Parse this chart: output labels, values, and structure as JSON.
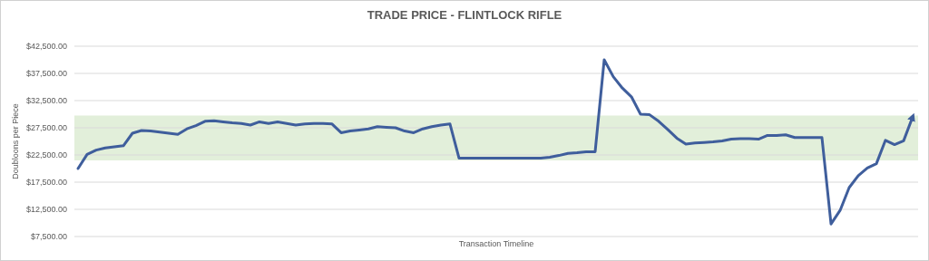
{
  "chart_data": {
    "type": "line",
    "title": "TRADE PRICE - FLINTLOCK RIFLE",
    "xlabel": "Transaction Timeline",
    "ylabel": "Doubloons per Piece",
    "categories": [
      null,
      null,
      null,
      null,
      null,
      null,
      null,
      null,
      null,
      null,
      null,
      null,
      null,
      null,
      null,
      null,
      null,
      null,
      null,
      null,
      null,
      null,
      null,
      null,
      null,
      null,
      null,
      null,
      null,
      null,
      null,
      null,
      null,
      null,
      null,
      null,
      null,
      null,
      null,
      null,
      null,
      null,
      null,
      null,
      null,
      null,
      null,
      null,
      null,
      null,
      null,
      null,
      null,
      null,
      null,
      null,
      null,
      null,
      null,
      null,
      null,
      null,
      null,
      null,
      null,
      null,
      null,
      null,
      null,
      null,
      null,
      null,
      null,
      null,
      null,
      null,
      null,
      null,
      null,
      null,
      null,
      null,
      null,
      null,
      null,
      null,
      null,
      null,
      null,
      null,
      null,
      null,
      null
    ],
    "series": [
      {
        "color": "#3f5e9c",
        "values": [
          20000,
          22600,
          23400,
          23800,
          24000,
          24200,
          26500,
          27000,
          26900,
          26700,
          26500,
          26300,
          27300,
          27900,
          28700,
          28800,
          28600,
          28400,
          28300,
          28000,
          28600,
          28300,
          28600,
          28300,
          28000,
          28200,
          28300,
          28300,
          28200,
          26600,
          26900,
          27100,
          27300,
          27700,
          27600,
          27500,
          26900,
          26600,
          27300,
          27700,
          28000,
          28200,
          21900,
          21900,
          21900,
          21900,
          21900,
          21900,
          21900,
          21900,
          21900,
          21900,
          22100,
          22400,
          22800,
          22900,
          23100,
          23100,
          40000,
          36900,
          34800,
          33200,
          30000,
          29900,
          28700,
          27200,
          25600,
          24500,
          24700,
          24800,
          24900,
          25100,
          25400,
          25500,
          25500,
          25400,
          26100,
          26100,
          26200,
          25700,
          25700,
          25700,
          25700,
          9800,
          12300,
          16500,
          18700,
          20100,
          20900,
          25200,
          24400,
          25100,
          29500
        ]
      }
    ],
    "ylim": [
      7500,
      42500
    ],
    "yticks": [
      {
        "value": 7500,
        "label": "$7,500.00"
      },
      {
        "value": 12500,
        "label": "$12,500.00"
      },
      {
        "value": 17500,
        "label": "$17,500.00"
      },
      {
        "value": 22500,
        "label": "$22,500.00"
      },
      {
        "value": 27500,
        "label": "$27,500.00"
      },
      {
        "value": 32500,
        "label": "$32,500.00"
      },
      {
        "value": 37500,
        "label": "$37,500.00"
      },
      {
        "value": 42500,
        "label": "$42,500.00"
      }
    ],
    "grid": "y",
    "marker": "none",
    "line_style": "solid",
    "bands": [
      {
        "axis": "y",
        "from": 21500,
        "to": 29750,
        "color": "#e2efda"
      }
    ]
  }
}
